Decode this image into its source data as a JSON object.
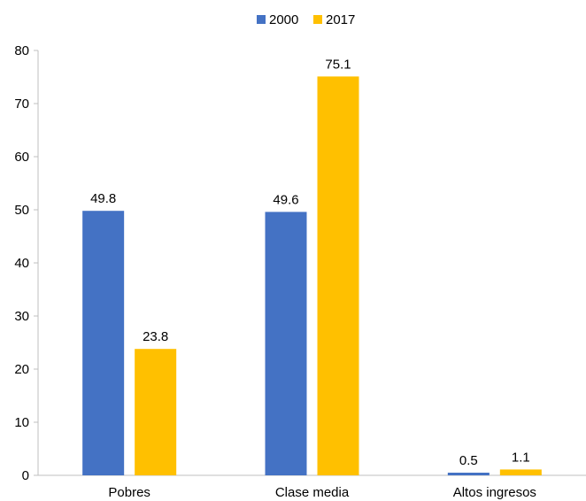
{
  "chart_data": {
    "type": "bar",
    "title": "",
    "xlabel": "",
    "ylabel": "",
    "categories": [
      "Pobres",
      "Clase media",
      "Altos ingresos"
    ],
    "series": [
      {
        "name": "2000",
        "values": [
          49.8,
          49.6,
          0.5
        ],
        "color": "#4472C4"
      },
      {
        "name": "2017",
        "values": [
          23.8,
          75.1,
          1.1
        ],
        "color": "#FFC000"
      }
    ],
    "ylim": [
      0,
      80
    ],
    "yticks": [
      0,
      10,
      20,
      30,
      40,
      50,
      60,
      70,
      80
    ],
    "grid": false,
    "legend_position": "top-center",
    "data_labels": [
      "49.8",
      "23.8",
      "49.6",
      "75.1",
      "0.5",
      "1.1"
    ],
    "axis_color": "#BFBFBF"
  }
}
